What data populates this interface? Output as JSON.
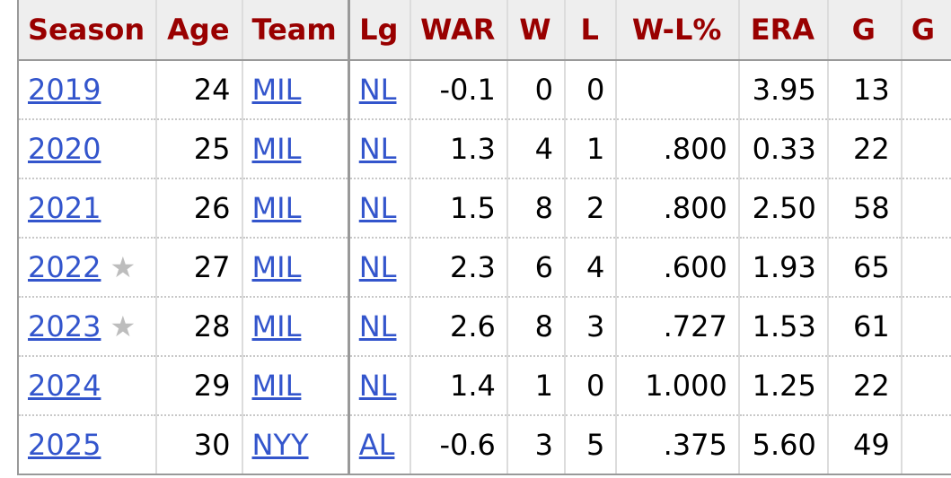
{
  "colors": {
    "header_text": "#990000",
    "header_bg": "#eeeeee",
    "link": "#3355cc",
    "star": "#bdbdbd"
  },
  "table": {
    "headers": {
      "season": "Season",
      "age": "Age",
      "team": "Team",
      "lg": "Lg",
      "war": "WAR",
      "w": "W",
      "l": "L",
      "wl_pct": "W-L%",
      "era": "ERA",
      "g": "G",
      "gs": "G"
    },
    "rows": [
      {
        "season": "2019",
        "star": "",
        "age": "24",
        "team": "MIL",
        "lg": "NL",
        "war": "-0.1",
        "w": "0",
        "l": "0",
        "wl_pct": "",
        "era": "3.95",
        "g": "13"
      },
      {
        "season": "2020",
        "star": "",
        "age": "25",
        "team": "MIL",
        "lg": "NL",
        "war": "1.3",
        "w": "4",
        "l": "1",
        "wl_pct": ".800",
        "era": "0.33",
        "g": "22"
      },
      {
        "season": "2021",
        "star": "",
        "age": "26",
        "team": "MIL",
        "lg": "NL",
        "war": "1.5",
        "w": "8",
        "l": "2",
        "wl_pct": ".800",
        "era": "2.50",
        "g": "58"
      },
      {
        "season": "2022",
        "star": "★",
        "age": "27",
        "team": "MIL",
        "lg": "NL",
        "war": "2.3",
        "w": "6",
        "l": "4",
        "wl_pct": ".600",
        "era": "1.93",
        "g": "65"
      },
      {
        "season": "2023",
        "star": "★",
        "age": "28",
        "team": "MIL",
        "lg": "NL",
        "war": "2.6",
        "w": "8",
        "l": "3",
        "wl_pct": ".727",
        "era": "1.53",
        "g": "61"
      },
      {
        "season": "2024",
        "star": "",
        "age": "29",
        "team": "MIL",
        "lg": "NL",
        "war": "1.4",
        "w": "1",
        "l": "0",
        "wl_pct": "1.000",
        "era": "1.25",
        "g": "22"
      },
      {
        "season": "2025",
        "star": "",
        "age": "30",
        "team": "NYY",
        "lg": "AL",
        "war": "-0.6",
        "w": "3",
        "l": "5",
        "wl_pct": ".375",
        "era": "5.60",
        "g": "49"
      }
    ]
  }
}
